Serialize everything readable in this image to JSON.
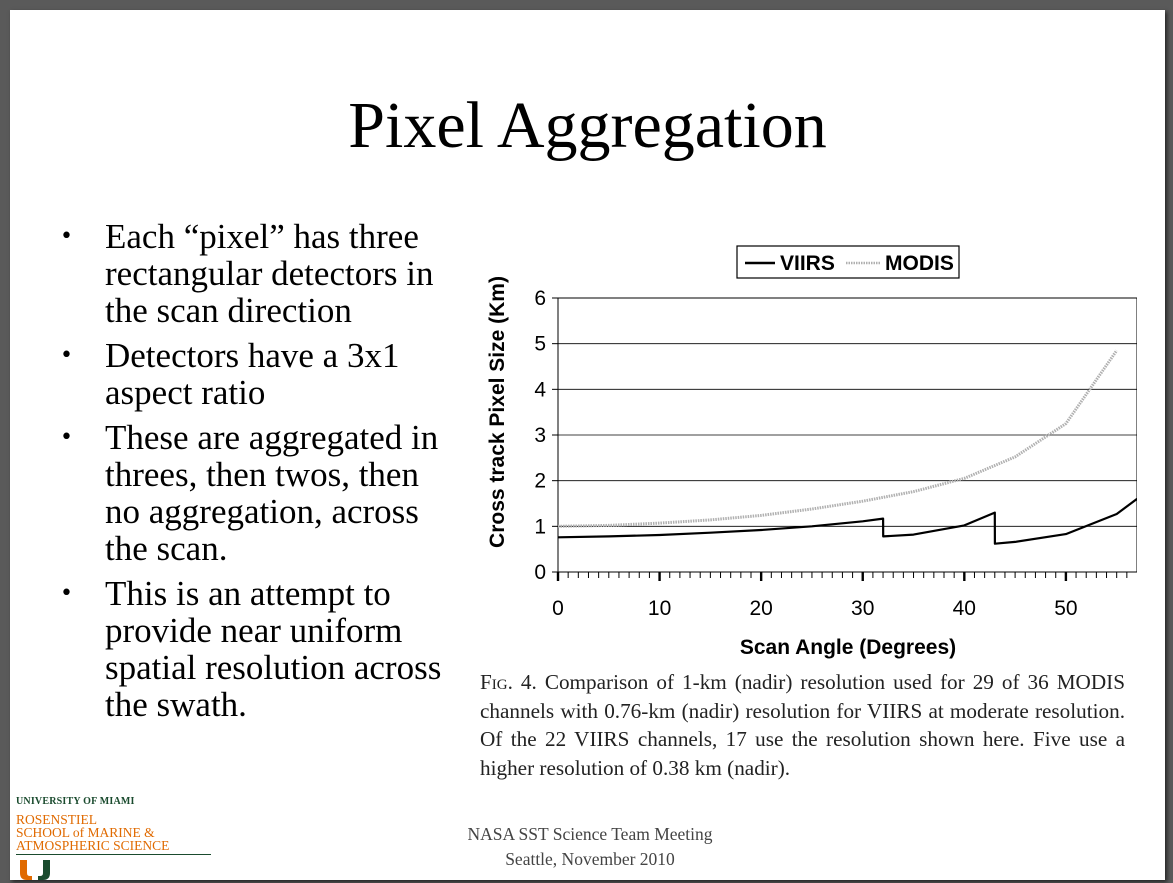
{
  "slide": {
    "title": "Pixel Aggregation",
    "bullets": [
      "Each “pixel” has three rectangular detectors in the scan direction",
      "Detectors have a 3x1 aspect ratio",
      "These are aggregated in threes, then twos, then no aggregation, across the scan.",
      "This is an attempt to provide near uniform spatial resolution across the swath."
    ],
    "bullet_symbol": "•",
    "caption_prefix": "Fig. 4.",
    "caption_body": " Comparison of 1-km (nadir) resolution used for 29 of 36 MODIS channels with 0.76-km (nadir) resolution for VIIRS at moderate resolution. Of the 22 VIIRS channels, 17 use the resolution shown here. Five use a higher resolution of 0.38 km (nadir).",
    "footer_line1": "NASA SST Science Team Meeting",
    "footer_line2": "Seattle, November 2010",
    "logo": {
      "university": "UNIVERSITY OF MIAMI",
      "school_lines": [
        "ROSENSTIEL",
        "SCHOOL of MARINE &",
        "ATMOSPHERIC SCIENCE"
      ],
      "brand_colors": {
        "green": "#1a4b2e",
        "orange": "#e06a00"
      }
    }
  },
  "chart_data": {
    "type": "line",
    "title": "",
    "xlabel": "Scan Angle (Degrees)",
    "ylabel": "Cross track Pixel Size (Km)",
    "xlim": [
      0,
      57
    ],
    "ylim": [
      0,
      6
    ],
    "xticks": [
      0,
      10,
      20,
      30,
      40,
      50
    ],
    "yticks": [
      0,
      1,
      2,
      3,
      4,
      5,
      6
    ],
    "grid": "horizontal",
    "legend_position": "top-center",
    "series": [
      {
        "name": "VIIRS",
        "color": "#000000",
        "style": "solid",
        "x": [
          0,
          5,
          10,
          15,
          20,
          25,
          30,
          32,
          32.01,
          35,
          40,
          43,
          43.01,
          45,
          50,
          55,
          57
        ],
        "y": [
          0.76,
          0.78,
          0.81,
          0.86,
          0.92,
          1.0,
          1.11,
          1.17,
          0.78,
          0.82,
          1.02,
          1.3,
          0.62,
          0.66,
          0.83,
          1.27,
          1.6
        ]
      },
      {
        "name": "MODIS",
        "color": "#b0b0b0",
        "style": "dotted",
        "x": [
          0,
          5,
          10,
          15,
          20,
          25,
          30,
          35,
          40,
          45,
          50,
          55
        ],
        "y": [
          1.0,
          1.02,
          1.07,
          1.14,
          1.24,
          1.38,
          1.55,
          1.76,
          2.05,
          2.52,
          3.25,
          4.85
        ]
      }
    ]
  }
}
